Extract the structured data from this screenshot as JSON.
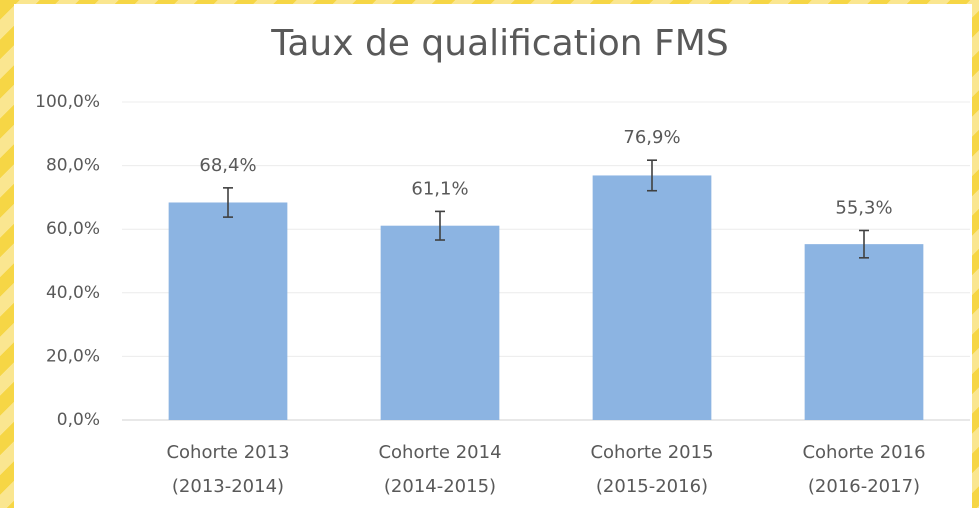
{
  "chart_data": {
    "type": "bar",
    "title": "Taux de qualification FMS",
    "categories": [
      "Cohorte 2013\n(2013-2014)",
      "Cohorte 2014\n(2014-2015)",
      "Cohorte 2015\n(2015-2016)",
      "Cohorte 2016\n(2016-2017)"
    ],
    "values": [
      68.4,
      61.1,
      76.9,
      55.3
    ],
    "value_labels": [
      "68,4%",
      "61,1%",
      "76,9%",
      "55,3%"
    ],
    "errors": [
      4.6,
      4.5,
      4.8,
      4.3
    ],
    "color": "#8cb4e2",
    "ylim": [
      0,
      100
    ],
    "yticks": [
      {
        "value": 0,
        "label": "0,0%"
      },
      {
        "value": 20,
        "label": "20,0%"
      },
      {
        "value": 40,
        "label": "40,0%"
      },
      {
        "value": 60,
        "label": "60,0%"
      },
      {
        "value": 80,
        "label": "80,0%"
      },
      {
        "value": 100,
        "label": "100,0%"
      }
    ],
    "grid": true
  }
}
